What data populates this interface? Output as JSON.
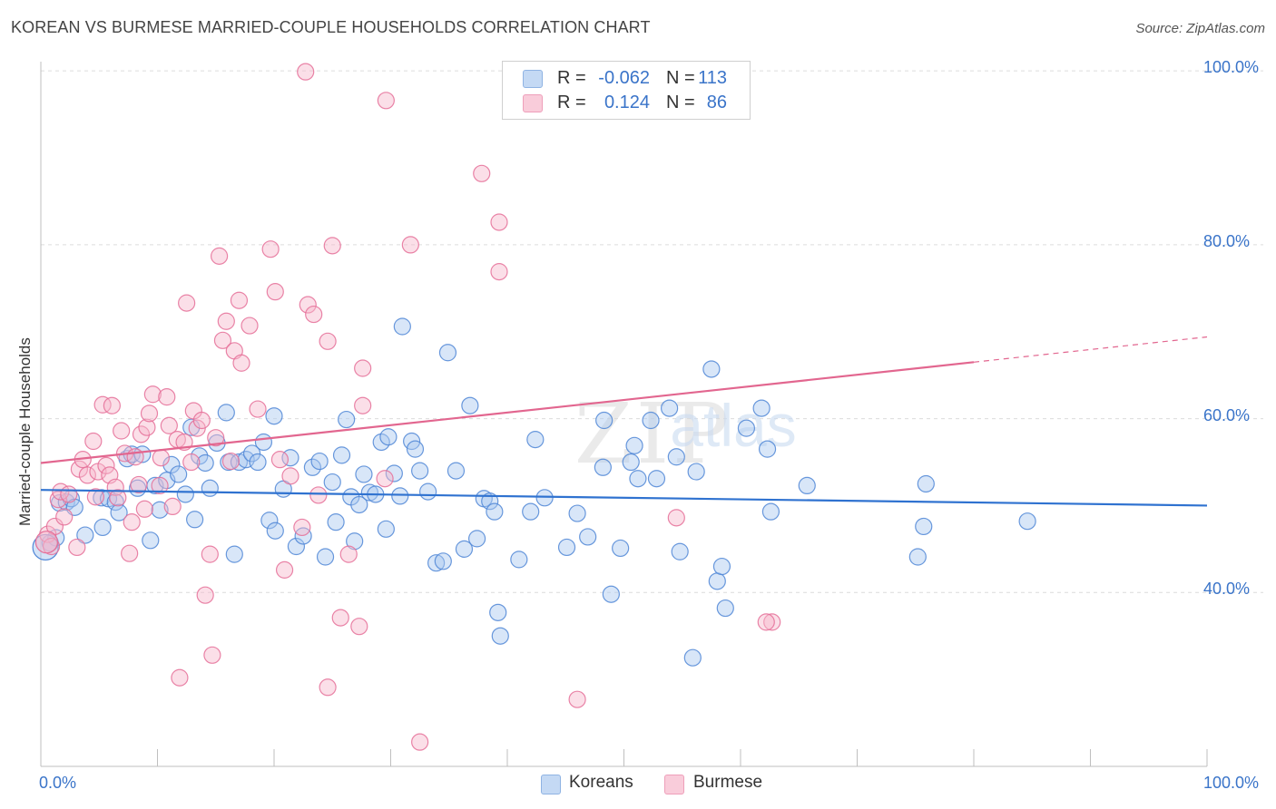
{
  "header": {
    "title": "KOREAN VS BURMESE MARRIED-COUPLE HOUSEHOLDS CORRELATION CHART",
    "source": "Source: ZipAtlas.com"
  },
  "legend": {
    "rows": [
      {
        "r_label": "R =",
        "r_value": "-0.062",
        "n_label": "N =",
        "n_value": "113",
        "color": "#a9c8ef"
      },
      {
        "r_label": "R =",
        "r_value": "0.124",
        "n_label": "N =",
        "n_value": "86",
        "color": "#f6b8cb"
      }
    ]
  },
  "bottom_legend": [
    {
      "label": "Koreans",
      "color": "#a9c8ef"
    },
    {
      "label": "Burmese",
      "color": "#f6b8cb"
    }
  ],
  "watermark": {
    "zip": "ZIP",
    "atlas": "atlas"
  },
  "chart_data": {
    "type": "scatter",
    "title": "KOREAN VS BURMESE MARRIED-COUPLE HOUSEHOLDS CORRELATION CHART",
    "xlabel": "",
    "ylabel": "Married-couple Households",
    "xlim": [
      0,
      100
    ],
    "ylim": [
      20,
      102
    ],
    "x_tick_labels": [
      "0.0%",
      "100.0%"
    ],
    "y_ticks": [
      40,
      60,
      80,
      100
    ],
    "y_tick_labels": [
      "40.0%",
      "60.0%",
      "80.0%",
      "100.0%"
    ],
    "grid": true,
    "legend_position": "top-center",
    "colors": {
      "koreans": "#4f86d6",
      "koreans_fill": "#a9c8ef",
      "burmese": "#e56f98",
      "burmese_fill": "#f6b8cb",
      "tick": "#3a74c9"
    },
    "trendlines": [
      {
        "name": "Koreans",
        "x": [
          0,
          100
        ],
        "y": [
          51.8,
          50.0
        ]
      },
      {
        "name": "Burmese",
        "x": [
          0,
          80
        ],
        "y": [
          54.9,
          66.5
        ],
        "dashed_extension": {
          "x": [
            80,
            100
          ],
          "y": [
            66.5,
            69.4
          ]
        }
      }
    ],
    "series": [
      {
        "name": "Koreans",
        "points": [
          [
            0.8,
            45.7
          ],
          [
            1.3,
            46.3
          ],
          [
            1.6,
            50.3
          ],
          [
            2.2,
            50.4
          ],
          [
            2.6,
            50.8
          ],
          [
            2.9,
            49.8
          ],
          [
            3.8,
            46.6
          ],
          [
            5.2,
            50.9
          ],
          [
            5.3,
            47.5
          ],
          [
            5.8,
            50.8
          ],
          [
            6.4,
            50.4
          ],
          [
            6.7,
            49.2
          ],
          [
            7.4,
            55.4
          ],
          [
            7.8,
            55.9
          ],
          [
            8.3,
            52.0
          ],
          [
            8.7,
            55.9
          ],
          [
            9.4,
            46.0
          ],
          [
            9.8,
            52.3
          ],
          [
            10.2,
            49.5
          ],
          [
            10.8,
            52.9
          ],
          [
            11.2,
            54.7
          ],
          [
            11.8,
            53.6
          ],
          [
            12.4,
            51.3
          ],
          [
            12.9,
            59.0
          ],
          [
            13.2,
            48.4
          ],
          [
            13.6,
            55.7
          ],
          [
            14.1,
            54.9
          ],
          [
            14.5,
            52.0
          ],
          [
            15.1,
            57.2
          ],
          [
            15.9,
            60.7
          ],
          [
            16.1,
            55.0
          ],
          [
            16.6,
            44.4
          ],
          [
            17.0,
            55.0
          ],
          [
            17.6,
            55.3
          ],
          [
            18.1,
            56.0
          ],
          [
            18.6,
            55.0
          ],
          [
            19.1,
            57.3
          ],
          [
            19.6,
            48.3
          ],
          [
            20.0,
            60.3
          ],
          [
            20.1,
            47.1
          ],
          [
            20.8,
            51.9
          ],
          [
            21.4,
            55.5
          ],
          [
            21.9,
            45.3
          ],
          [
            22.5,
            46.5
          ],
          [
            23.3,
            54.4
          ],
          [
            23.9,
            55.1
          ],
          [
            24.4,
            44.1
          ],
          [
            25.0,
            52.7
          ],
          [
            25.3,
            48.1
          ],
          [
            25.8,
            55.8
          ],
          [
            26.2,
            59.9
          ],
          [
            26.6,
            51.0
          ],
          [
            26.9,
            45.9
          ],
          [
            27.3,
            50.1
          ],
          [
            27.7,
            53.6
          ],
          [
            28.2,
            51.5
          ],
          [
            28.7,
            51.3
          ],
          [
            29.2,
            57.3
          ],
          [
            29.6,
            47.3
          ],
          [
            29.8,
            57.9
          ],
          [
            30.3,
            53.7
          ],
          [
            30.8,
            51.1
          ],
          [
            31.0,
            70.6
          ],
          [
            31.8,
            57.4
          ],
          [
            32.1,
            56.5
          ],
          [
            32.5,
            54.0
          ],
          [
            33.2,
            51.6
          ],
          [
            33.9,
            43.4
          ],
          [
            34.5,
            43.6
          ],
          [
            34.9,
            67.6
          ],
          [
            35.6,
            54.0
          ],
          [
            36.3,
            45.0
          ],
          [
            36.8,
            61.5
          ],
          [
            37.4,
            46.2
          ],
          [
            38.0,
            50.8
          ],
          [
            38.5,
            50.5
          ],
          [
            38.9,
            49.3
          ],
          [
            39.2,
            37.7
          ],
          [
            39.4,
            35.0
          ],
          [
            41.0,
            43.8
          ],
          [
            42.0,
            49.3
          ],
          [
            42.4,
            57.6
          ],
          [
            43.2,
            50.9
          ],
          [
            45.1,
            45.2
          ],
          [
            46.0,
            49.1
          ],
          [
            46.9,
            46.4
          ],
          [
            48.2,
            54.4
          ],
          [
            48.3,
            59.8
          ],
          [
            48.9,
            39.8
          ],
          [
            49.7,
            45.1
          ],
          [
            50.6,
            55.0
          ],
          [
            50.9,
            56.9
          ],
          [
            51.2,
            53.1
          ],
          [
            52.3,
            59.8
          ],
          [
            52.8,
            53.1
          ],
          [
            53.9,
            61.2
          ],
          [
            54.5,
            55.6
          ],
          [
            54.8,
            44.7
          ],
          [
            55.9,
            32.5
          ],
          [
            56.2,
            53.9
          ],
          [
            57.5,
            65.7
          ],
          [
            58.0,
            41.3
          ],
          [
            58.4,
            43.0
          ],
          [
            58.7,
            38.2
          ],
          [
            60.5,
            58.9
          ],
          [
            61.8,
            61.2
          ],
          [
            62.3,
            56.5
          ],
          [
            62.6,
            49.3
          ],
          [
            65.7,
            52.3
          ],
          [
            75.2,
            44.1
          ],
          [
            75.7,
            47.6
          ],
          [
            75.9,
            52.5
          ],
          [
            84.6,
            48.2
          ]
        ]
      },
      {
        "name": "Burmese",
        "points": [
          [
            0.6,
            46.7
          ],
          [
            0.9,
            45.3
          ],
          [
            1.2,
            47.6
          ],
          [
            1.5,
            50.7
          ],
          [
            1.7,
            51.6
          ],
          [
            2.0,
            48.7
          ],
          [
            2.4,
            51.3
          ],
          [
            3.1,
            45.2
          ],
          [
            3.3,
            54.2
          ],
          [
            3.6,
            55.3
          ],
          [
            4.0,
            53.5
          ],
          [
            4.5,
            57.4
          ],
          [
            4.7,
            51.0
          ],
          [
            4.9,
            53.9
          ],
          [
            5.3,
            61.6
          ],
          [
            5.6,
            54.6
          ],
          [
            5.9,
            53.5
          ],
          [
            6.1,
            61.5
          ],
          [
            6.4,
            52.1
          ],
          [
            6.6,
            50.9
          ],
          [
            6.9,
            58.6
          ],
          [
            7.2,
            56.0
          ],
          [
            7.6,
            44.5
          ],
          [
            7.8,
            48.1
          ],
          [
            8.1,
            55.6
          ],
          [
            8.4,
            52.4
          ],
          [
            8.6,
            58.2
          ],
          [
            8.9,
            49.6
          ],
          [
            9.1,
            59.0
          ],
          [
            9.3,
            60.6
          ],
          [
            9.6,
            62.8
          ],
          [
            10.2,
            52.3
          ],
          [
            10.3,
            55.5
          ],
          [
            10.8,
            62.5
          ],
          [
            11.0,
            59.2
          ],
          [
            11.3,
            49.9
          ],
          [
            11.7,
            57.6
          ],
          [
            11.9,
            30.2
          ],
          [
            12.3,
            57.3
          ],
          [
            12.5,
            73.3
          ],
          [
            12.9,
            55.0
          ],
          [
            13.1,
            60.9
          ],
          [
            13.4,
            58.9
          ],
          [
            13.8,
            59.8
          ],
          [
            14.1,
            39.7
          ],
          [
            14.5,
            44.4
          ],
          [
            14.7,
            32.8
          ],
          [
            15.0,
            57.8
          ],
          [
            15.3,
            78.7
          ],
          [
            15.6,
            69.0
          ],
          [
            15.9,
            71.2
          ],
          [
            16.3,
            55.1
          ],
          [
            16.6,
            67.8
          ],
          [
            17.0,
            73.6
          ],
          [
            17.2,
            66.4
          ],
          [
            17.9,
            70.7
          ],
          [
            18.6,
            61.1
          ],
          [
            19.7,
            79.5
          ],
          [
            20.1,
            74.6
          ],
          [
            20.5,
            55.3
          ],
          [
            20.9,
            42.6
          ],
          [
            21.4,
            53.4
          ],
          [
            22.4,
            47.5
          ],
          [
            22.7,
            99.9
          ],
          [
            22.9,
            73.1
          ],
          [
            23.4,
            72.0
          ],
          [
            23.8,
            51.2
          ],
          [
            24.6,
            68.9
          ],
          [
            24.6,
            29.1
          ],
          [
            25.0,
            79.9
          ],
          [
            25.7,
            37.1
          ],
          [
            26.4,
            44.4
          ],
          [
            27.3,
            36.1
          ],
          [
            27.6,
            61.5
          ],
          [
            27.6,
            65.8
          ],
          [
            29.5,
            53.1
          ],
          [
            29.6,
            96.6
          ],
          [
            31.7,
            80.0
          ],
          [
            32.5,
            22.8
          ],
          [
            37.8,
            88.2
          ],
          [
            39.3,
            82.6
          ],
          [
            39.3,
            76.9
          ],
          [
            46.0,
            27.7
          ],
          [
            54.5,
            48.6
          ],
          [
            62.7,
            36.6
          ],
          [
            62.2,
            36.6
          ]
        ]
      }
    ]
  }
}
